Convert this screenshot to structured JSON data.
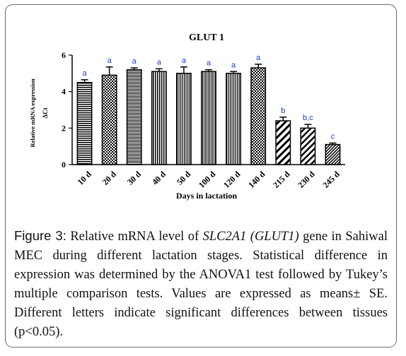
{
  "chart_data": {
    "type": "bar",
    "title": "GLUT 1",
    "xlabel": "Days in lactation",
    "ylabel_line1": "Relative mRNA expression",
    "ylabel_line2": "ΔCt",
    "ylim": [
      0,
      6
    ],
    "yticks": [
      "0",
      "2",
      "4",
      "6"
    ],
    "categories": [
      "10 d",
      "20 d",
      "30 d",
      "40 d",
      "50 d",
      "100 d",
      "120 d",
      "140 d",
      "215 d",
      "230 d",
      "245 d"
    ],
    "values": [
      4.5,
      4.9,
      5.2,
      5.1,
      5.0,
      5.1,
      5.0,
      5.3,
      2.4,
      2.0,
      1.1
    ],
    "errors": [
      0.15,
      0.45,
      0.1,
      0.15,
      0.35,
      0.1,
      0.1,
      0.2,
      0.2,
      0.2,
      0.08
    ],
    "significance": [
      "a",
      "a",
      "a",
      "a",
      "a",
      "a",
      "a",
      "a",
      "b",
      "b,c",
      "c"
    ],
    "patterns": [
      "hlines",
      "check",
      "hlinesfine",
      "vlines",
      "vlinesfine",
      "vlinesfine2",
      "vlinesfine",
      "check",
      "diag",
      "diag2",
      "diagfine"
    ],
    "sig_color": "#1a3bd6",
    "grid": false,
    "legend": "none"
  },
  "caption": {
    "label": "Figure 3:",
    "text_before": " Relative mRNA level of ",
    "gene": "SLC2A1 (GLUT1)",
    "text_after": " gene in Sahiwal MEC during different lactation stages. Statistical difference in expression was determined by the ANOVA1 test followed by Tukey’s multiple comparison tests. Values are expressed as means± SE. Different letters indicate significant differences between tissues (p<0.05)."
  }
}
